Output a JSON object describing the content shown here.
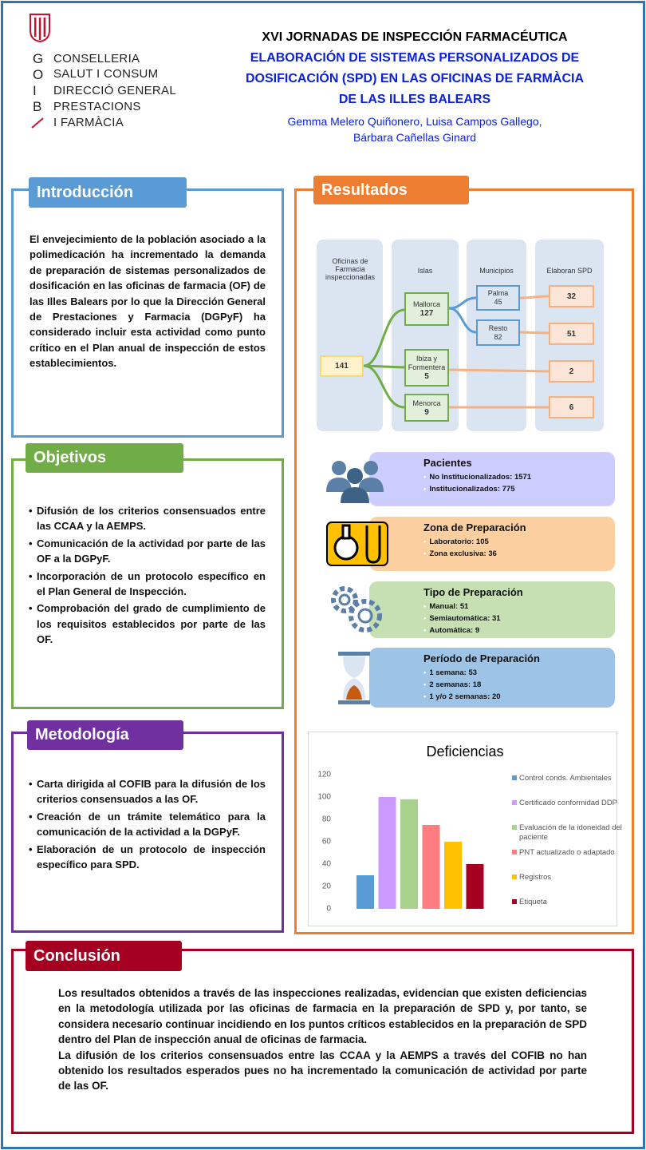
{
  "header": {
    "logo": {
      "letters": [
        "G",
        "O",
        "I",
        "B"
      ],
      "lines": [
        "CONSELLERIA",
        "SALUT I CONSUM",
        "DIRECCIÓ GENERAL",
        "PRESTACIONS",
        "I FARMÀCIA"
      ]
    },
    "event": "XVI JORNADAS DE INSPECCIÓN FARMACÉUTICA",
    "title_lines": [
      "ELABORACIÓN DE SISTEMAS PERSONALIZADOS DE",
      "DOSIFICACIÓN (SPD) EN LAS OFICINAS DE FARMÀCIA",
      "DE LAS ILLES BALEARS"
    ],
    "authors_lines": [
      "Gemma Melero Quiñonero, Luisa Campos Gallego,",
      "Bárbara Cañellas Ginard"
    ]
  },
  "introduccion": {
    "heading": "Introducción",
    "text": "El envejecimiento de la población asociado a la polimedicación ha incrementado la demanda de preparación de sistemas personalizados de dosificación en las oficinas de farmacia (OF) de las Illes Balears por lo que la Dirección General de Prestaciones y Farmacia (DGPyF) ha considerado incluir esta actividad como punto crítico en el Plan anual de inspección de estos establecimientos."
  },
  "objetivos": {
    "heading": "Objetivos",
    "items": [
      "Difusión de los criterios consensuados entre las CCAA y la AEMPS.",
      "Comunicación de la actividad por parte de las OF a la DGPyF.",
      "Incorporación de un protocolo específico en el Plan General de Inspección.",
      "Comprobación del grado de cumplimiento de los requisitos establecidos por parte de las OF."
    ]
  },
  "metodologia": {
    "heading": "Metodología",
    "items": [
      "Carta dirigida al COFIB para la difusión de los criterios consensuados a las OF.",
      "Creación de un trámite telemático para la comunicación de la actividad a la DGPyF.",
      "Elaboración de un protocolo de inspección específico para SPD."
    ]
  },
  "resultados": {
    "heading": "Resultados",
    "diagram": {
      "columns": [
        "Oficinas de Farmacia inspeccionadas",
        "Islas",
        "Municipios",
        "Elaboran SPD"
      ],
      "total": 141,
      "islands": [
        {
          "label": "Mallorca",
          "value": 127
        },
        {
          "label": "Ibiza y Formentera",
          "value": 5
        },
        {
          "label": "Menorca",
          "value": 9
        }
      ],
      "municipalities": [
        {
          "label": "Palma",
          "value": 45
        },
        {
          "label": "Resto",
          "value": 82
        }
      ],
      "spd": [
        32,
        51,
        2,
        6
      ]
    },
    "cards": [
      {
        "title": "Pacientes",
        "items": [
          "No Institucionalizados: 1571",
          "Institucionalizados: 775"
        ]
      },
      {
        "title": "Zona de Preparación",
        "items": [
          "Laboratorio: 105",
          "Zona exclusiva: 36"
        ]
      },
      {
        "title": "Tipo de Preparación",
        "items": [
          "Manual: 51",
          "Semiautomática: 31",
          "Automática: 9"
        ]
      },
      {
        "title": "Período de Preparación",
        "items": [
          "1 semana: 53",
          "2 semanas: 18",
          "1 y/o 2 semanas: 20"
        ]
      }
    ]
  },
  "chart_data": {
    "type": "bar",
    "title": "Deficiencias",
    "series": [
      {
        "name": "Control conds. Ambientales",
        "color": "#5b9bd5",
        "values": [
          30
        ]
      },
      {
        "name": "Certificado conformidad DDP",
        "color": "#cc99ff",
        "values": [
          100
        ]
      },
      {
        "name": "Evaluación de la idoneidad del paciente",
        "color": "#a9d18e",
        "values": [
          98
        ]
      },
      {
        "name": "PNT actualizado o adaptado",
        "color": "#ff7c80",
        "values": [
          75
        ]
      },
      {
        "name": "Registros",
        "color": "#ffc000",
        "values": [
          60
        ]
      },
      {
        "name": "Etiqueta",
        "color": "#a50021",
        "values": [
          40
        ]
      }
    ],
    "ylim": [
      0,
      120
    ],
    "yticks": [
      0,
      20,
      40,
      60,
      80,
      100,
      120
    ],
    "grid": false,
    "legend": "right"
  },
  "conclusion": {
    "heading": "Conclusión",
    "paragraphs": [
      "Los resultados obtenidos a través de las inspecciones realizadas, evidencian que existen deficiencias en la metodología utilizada por las oficinas de farmacia en la preparación de SPD y, por tanto, se considera necesario continuar incidiendo en los puntos críticos establecidos en la preparación de SPD dentro del Plan de inspección anual de oficinas de farmacia.",
      "La difusión de los criterios consensuados entre las CCAA y la AEMPS a través del COFIB no han obtenido los resultados esperados pues no ha incrementado la comunicación de actividad por parte de las OF."
    ]
  }
}
